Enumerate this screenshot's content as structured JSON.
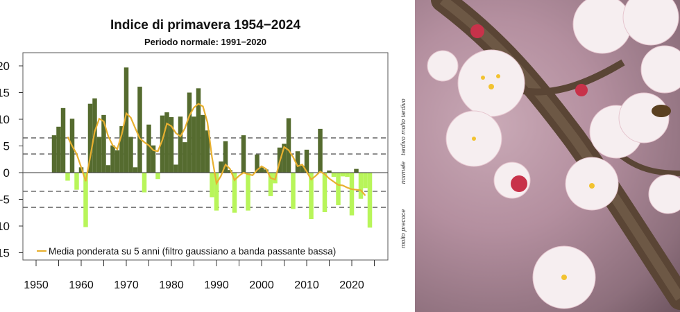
{
  "chart_data": {
    "type": "bar",
    "title": "Indice di primavera 1954−2024",
    "subtitle": "Periodo normale: 1991−2020",
    "xlabel": "",
    "ylabel": "",
    "xlim": [
      1947,
      2028
    ],
    "ylim": [
      -17,
      22
    ],
    "x_ticks": [
      1950,
      1955,
      1960,
      1965,
      1970,
      1975,
      1980,
      1985,
      1990,
      1995,
      2000,
      2005,
      2010,
      2015,
      2020,
      2025
    ],
    "x_tick_labels": [
      "1950",
      "1960",
      "1970",
      "1980",
      "1990",
      "2000",
      "2010",
      "2020"
    ],
    "y_ticks": [
      20,
      15,
      10,
      5,
      0,
      -5,
      -10,
      -15
    ],
    "y_tick_labels": [
      "20",
      "15",
      "10",
      "5",
      "0",
      "-5",
      "-10",
      "-15"
    ],
    "grid": false,
    "thresholds": [
      6.5,
      3.5,
      -3.5,
      -6.5
    ],
    "band_labels": [
      "molto tardivo",
      "tardivo",
      "normale",
      "molto precoce"
    ],
    "colors": {
      "positive": "#556b2f",
      "negative": "#b8f55a",
      "smooth": "#e8b030"
    },
    "years": [
      1954,
      1955,
      1956,
      1957,
      1958,
      1959,
      1960,
      1961,
      1962,
      1963,
      1964,
      1965,
      1966,
      1967,
      1968,
      1969,
      1970,
      1971,
      1972,
      1973,
      1974,
      1975,
      1976,
      1977,
      1978,
      1979,
      1980,
      1981,
      1982,
      1983,
      1984,
      1985,
      1986,
      1987,
      1988,
      1989,
      1990,
      1991,
      1992,
      1993,
      1994,
      1995,
      1996,
      1997,
      1998,
      1999,
      2000,
      2001,
      2002,
      2003,
      2004,
      2005,
      2006,
      2007,
      2008,
      2009,
      2010,
      2011,
      2012,
      2013,
      2014,
      2015,
      2016,
      2017,
      2018,
      2019,
      2020,
      2021,
      2022,
      2023,
      2024
    ],
    "values": [
      7.0,
      8.6,
      12.1,
      -1.5,
      10.1,
      -3.2,
      1.0,
      -10.2,
      12.9,
      13.9,
      6.7,
      10.8,
      1.4,
      5.1,
      4.2,
      8.7,
      19.7,
      6.7,
      1.0,
      16.1,
      -3.7,
      9.0,
      5.1,
      -1.2,
      10.7,
      11.3,
      10.4,
      1.5,
      10.5,
      5.7,
      15.0,
      10.5,
      15.8,
      10.8,
      7.9,
      -4.6,
      -7.1,
      2.1,
      5.9,
      0.5,
      -7.5,
      0.0,
      7.0,
      -7.1,
      0.1,
      3.4,
      1.0,
      0.6,
      -4.4,
      -2.0,
      4.7,
      5.4,
      10.2,
      -6.8,
      4.0,
      1.3,
      4.3,
      -8.7,
      0.0,
      8.2,
      -7.4,
      0.4,
      -0.8,
      -6.1,
      -0.7,
      -0.8,
      -8.0,
      0.7,
      -4.9,
      -2.9,
      -10.3
    ],
    "smooth": {
      "name": "Media ponderata su 5 anni (filtro gaussiano a banda passante bassa)",
      "years": [
        1957,
        1958,
        1959,
        1960,
        1961,
        1962,
        1963,
        1964,
        1965,
        1966,
        1967,
        1968,
        1969,
        1970,
        1971,
        1972,
        1973,
        1974,
        1975,
        1976,
        1977,
        1978,
        1979,
        1980,
        1981,
        1982,
        1983,
        1984,
        1985,
        1986,
        1987,
        1988,
        1989,
        1990,
        1991,
        1992,
        1993,
        1994,
        1995,
        1996,
        1997,
        1998,
        1999,
        2000,
        2001,
        2002,
        2003,
        2004,
        2005,
        2006,
        2007,
        2008,
        2009,
        2010,
        2011,
        2012,
        2013,
        2014,
        2015,
        2016,
        2017,
        2018,
        2019,
        2020,
        2021,
        2022,
        2023
      ],
      "values": [
        6.7,
        5.0,
        3.5,
        1.0,
        -1.6,
        2.9,
        7.7,
        10.1,
        9.6,
        6.8,
        5.1,
        4.4,
        7.2,
        11.1,
        10.3,
        8.3,
        6.4,
        5.7,
        5.1,
        4.2,
        4.0,
        6.1,
        9.2,
        8.7,
        7.4,
        6.8,
        8.3,
        10.7,
        12.2,
        12.9,
        12.4,
        9.4,
        2.9,
        -2.0,
        -0.6,
        1.5,
        0.7,
        -1.4,
        -0.6,
        0.0,
        -0.3,
        -0.5,
        0.5,
        1.2,
        0.7,
        -1.0,
        -1.3,
        2.0,
        4.8,
        4.2,
        2.9,
        1.2,
        1.5,
        0.2,
        -1.3,
        -0.6,
        0.2,
        -0.3,
        -1.1,
        -1.7,
        -2.3,
        -2.4,
        -2.8,
        -3.1,
        -3.2,
        -3.3,
        -4.3
      ]
    }
  }
}
